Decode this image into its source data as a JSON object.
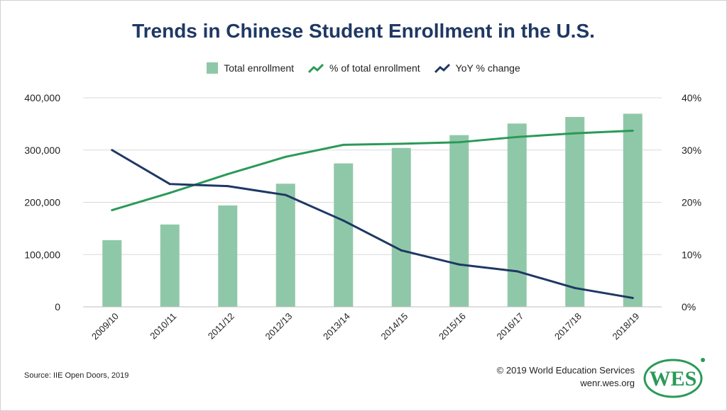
{
  "title": "Trends in Chinese Student Enrollment in the U.S.",
  "legend": {
    "total_enrollment": "Total enrollment",
    "pct_total": "% of total enrollment",
    "yoy": "YoY % change"
  },
  "colors": {
    "title": "#1f3864",
    "bar": "#8fc8a8",
    "pct_line": "#2a9a57",
    "yoy_line": "#1f3864",
    "logo": "#2a9a57"
  },
  "chart_data": {
    "type": "bar",
    "categories": [
      "2009/10",
      "2010/11",
      "2011/12",
      "2012/13",
      "2013/14",
      "2014/15",
      "2015/16",
      "2016/17",
      "2017/18",
      "2018/19"
    ],
    "series": [
      {
        "name": "Total enrollment",
        "type": "bar",
        "axis": "left",
        "values": [
          127628,
          157558,
          194029,
          235597,
          274439,
          304040,
          328547,
          350755,
          363341,
          369548
        ]
      },
      {
        "name": "% of total enrollment",
        "type": "line",
        "axis": "right",
        "values": [
          18.5,
          21.8,
          25.4,
          28.7,
          31.0,
          31.2,
          31.5,
          32.5,
          33.2,
          33.7
        ]
      },
      {
        "name": "YoY % change",
        "type": "line",
        "axis": "right",
        "values": [
          30.0,
          23.5,
          23.1,
          21.4,
          16.5,
          10.8,
          8.1,
          6.8,
          3.6,
          1.7
        ]
      }
    ],
    "y_left": {
      "ylim": [
        0,
        400000
      ],
      "ticks": [
        "0",
        "100,000",
        "200,000",
        "300,000",
        "400,000"
      ]
    },
    "y_right": {
      "ylim": [
        0,
        40
      ],
      "ticks": [
        "0%",
        "10%",
        "20%",
        "30%",
        "40%"
      ]
    },
    "grid": true,
    "legend_position": "top-center"
  },
  "footer": {
    "source": "Source: IIE Open Doors, 2019",
    "copyright": "© 2019 World Education Services",
    "website": "wenr.wes.org",
    "logo_text": "WES"
  }
}
